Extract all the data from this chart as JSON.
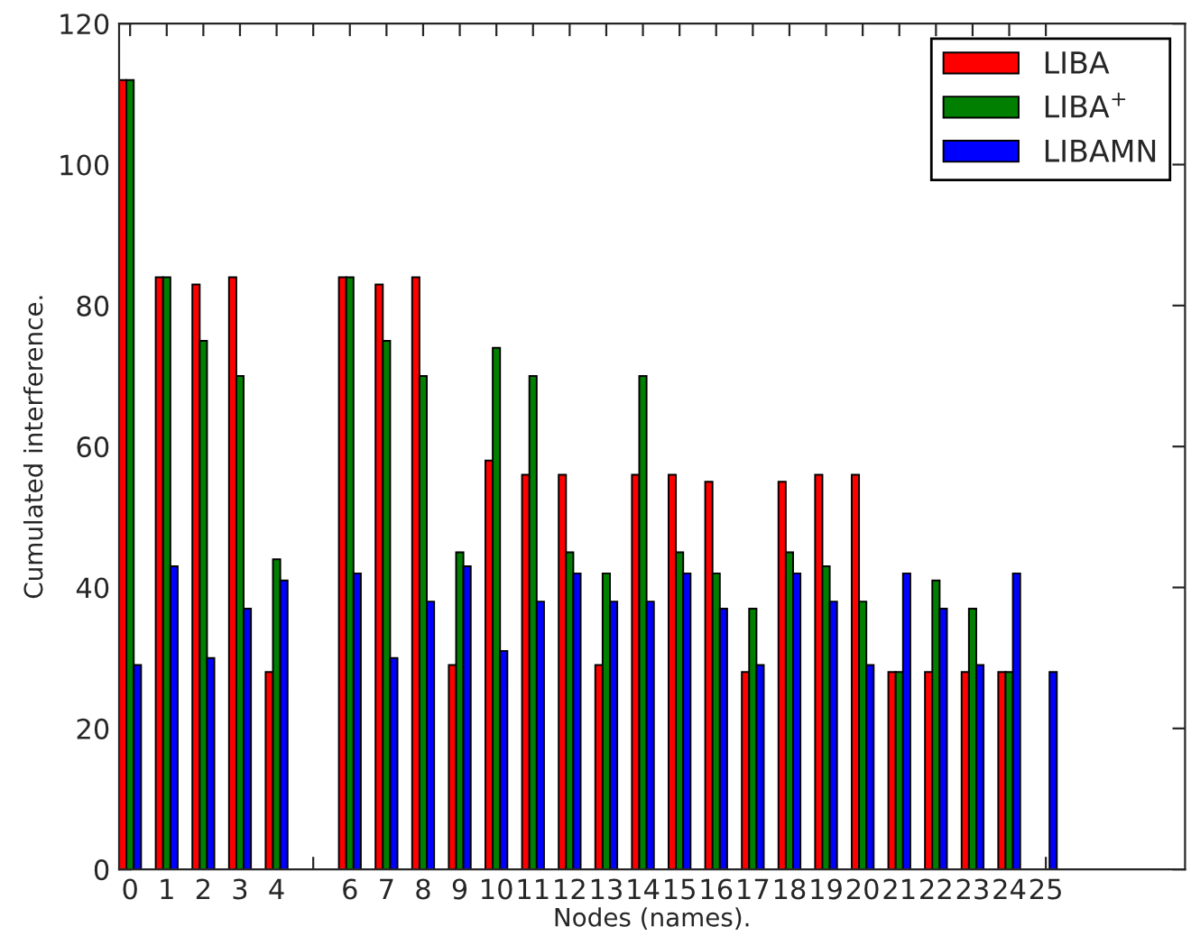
{
  "chart_data": {
    "type": "bar",
    "xlabel": "Nodes (names).",
    "ylabel": "Cumulated interference.",
    "x": [
      0,
      1,
      2,
      3,
      4,
      6,
      7,
      8,
      9,
      10,
      11,
      12,
      13,
      14,
      15,
      16,
      17,
      18,
      19,
      20,
      21,
      22,
      23,
      24,
      25
    ],
    "xlim": [
      -0.3,
      28.8
    ],
    "xticks": [
      0,
      1,
      2,
      3,
      4,
      {
        "value": 5,
        "label": null
      },
      6,
      7,
      8,
      9,
      10,
      11,
      12,
      13,
      14,
      15,
      16,
      17,
      18,
      19,
      20,
      21,
      22,
      23,
      24,
      25
    ],
    "ylim": [
      0,
      120
    ],
    "yticks": [
      0,
      20,
      40,
      60,
      80,
      100,
      120
    ],
    "series": [
      {
        "name": "LIBA",
        "color": "#ff0000",
        "values": [
          112,
          84,
          83,
          84,
          28,
          84,
          83,
          84,
          29,
          58,
          56,
          56,
          29,
          56,
          56,
          55,
          28,
          55,
          56,
          56,
          28,
          28,
          28,
          28,
          null
        ]
      },
      {
        "name": "LIBA$^{+}$",
        "color": "#007f00",
        "values": [
          112,
          84,
          75,
          70,
          44,
          84,
          75,
          70,
          45,
          74,
          70,
          45,
          42,
          70,
          45,
          42,
          37,
          45,
          43,
          38,
          28,
          41,
          37,
          28,
          null
        ]
      },
      {
        "name": "LIBAMN",
        "color": "#0000ff",
        "values": [
          29,
          43,
          30,
          37,
          41,
          42,
          30,
          38,
          43,
          31,
          38,
          42,
          38,
          38,
          42,
          37,
          29,
          42,
          38,
          29,
          42,
          37,
          29,
          42,
          28
        ]
      }
    ],
    "legend": "top right",
    "grid": false
  }
}
